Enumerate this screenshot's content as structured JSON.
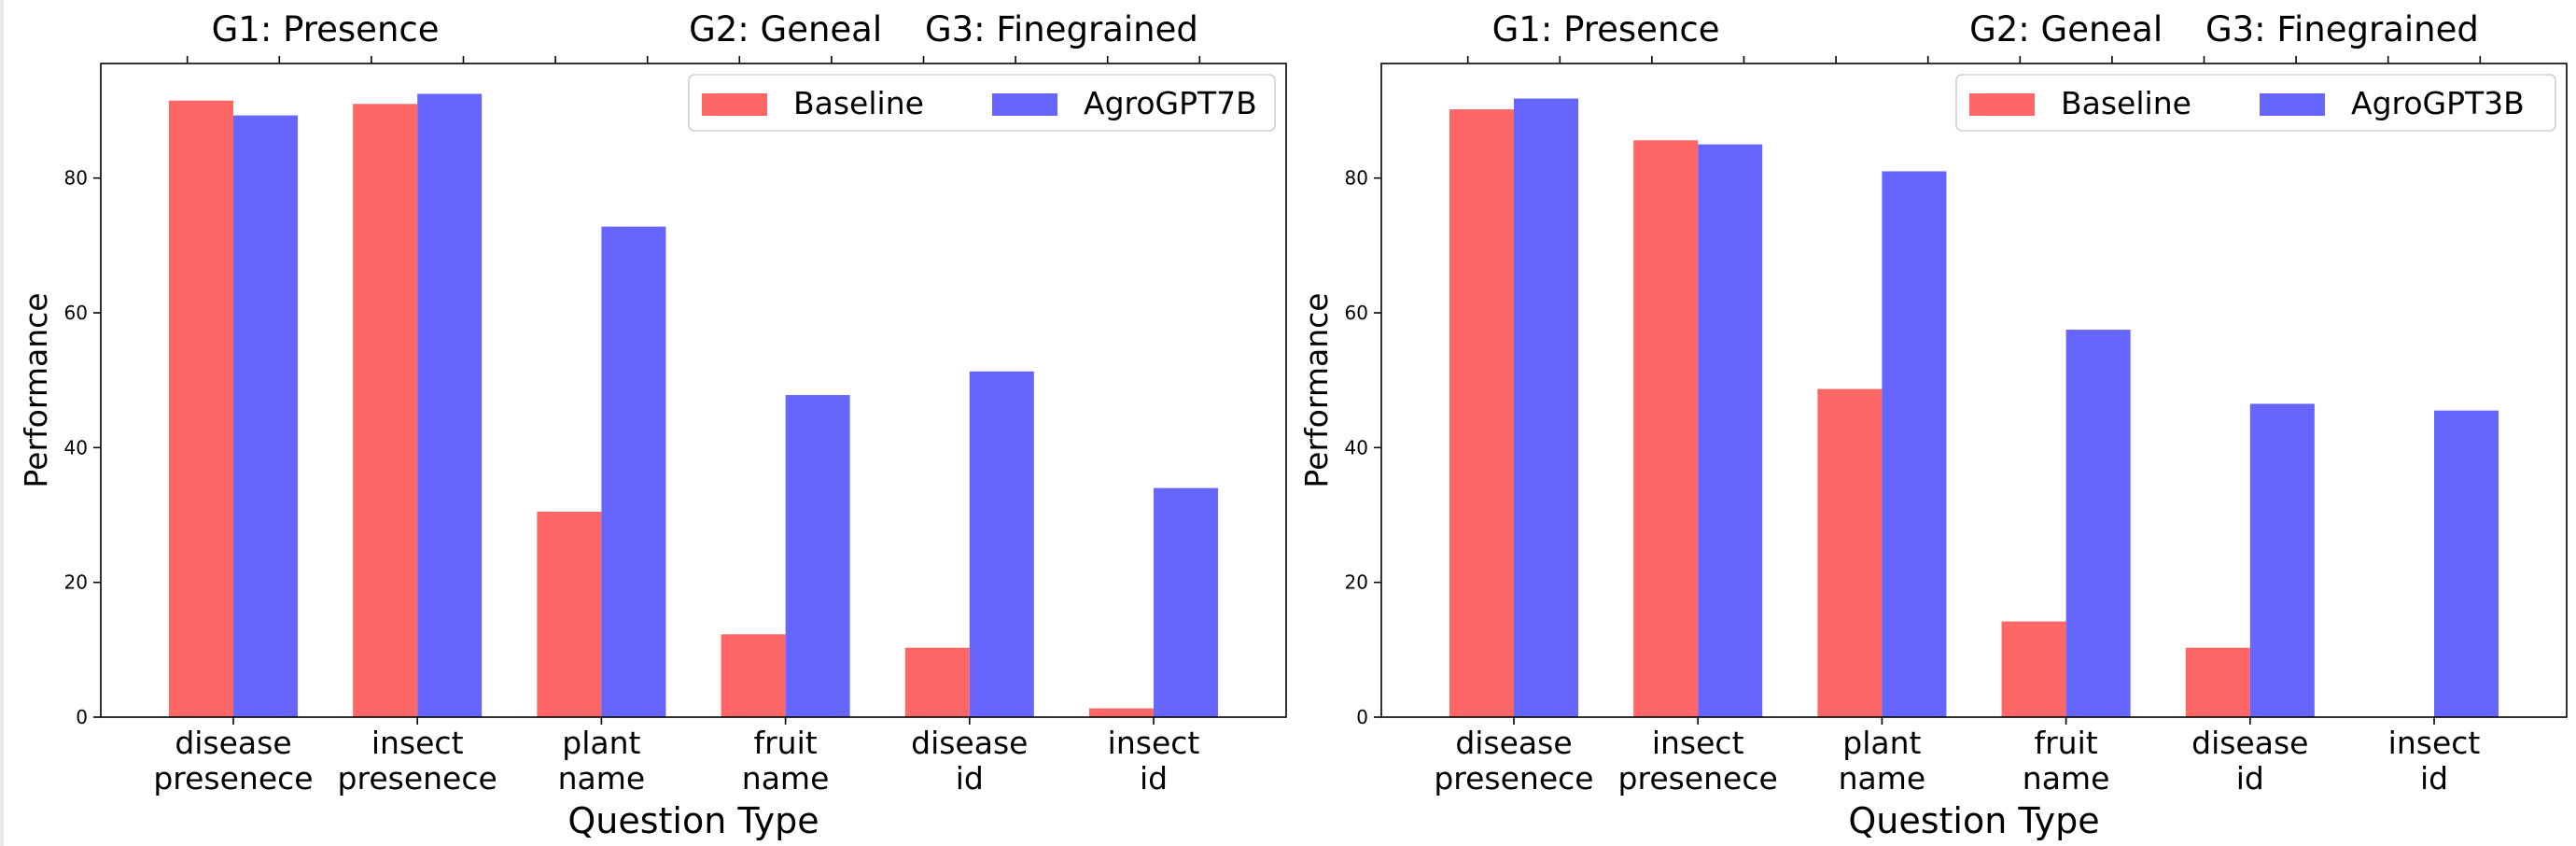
{
  "chart_data": [
    {
      "type": "bar",
      "ylabel": "Performance",
      "xlabel": "Question Type",
      "ylim": [
        0,
        97
      ],
      "yticks": [
        0,
        20,
        40,
        60,
        80
      ],
      "categories": [
        [
          "disease",
          "presenece"
        ],
        [
          "insect",
          "presenece"
        ],
        [
          "plant",
          "name"
        ],
        [
          "fruit",
          "name"
        ],
        [
          "disease",
          "id"
        ],
        [
          "insect",
          "id"
        ]
      ],
      "top_groups": [
        "G1: Presence",
        "G2: Geneal",
        "G3: Finegrained"
      ],
      "legend_position": "top-right",
      "grid": false,
      "series": [
        {
          "name": "Baseline",
          "color": "#ff6666",
          "values": [
            91.5,
            91.0,
            30.5,
            12.3,
            10.3,
            1.3
          ]
        },
        {
          "name": "AgroGPT7B",
          "color": "#6666ff",
          "values": [
            89.3,
            92.5,
            72.8,
            47.8,
            51.3,
            34.0
          ]
        }
      ]
    },
    {
      "type": "bar",
      "ylabel": "Performance",
      "xlabel": "Question Type",
      "ylim": [
        0,
        97
      ],
      "yticks": [
        0,
        20,
        40,
        60,
        80
      ],
      "categories": [
        [
          "disease",
          "presenece"
        ],
        [
          "insect",
          "presenece"
        ],
        [
          "plant",
          "name"
        ],
        [
          "fruit",
          "name"
        ],
        [
          "disease",
          "id"
        ],
        [
          "insect",
          "id"
        ]
      ],
      "top_groups": [
        "G1: Presence",
        "G2: Geneal",
        "G3: Finegrained"
      ],
      "legend_position": "top-right",
      "grid": false,
      "series": [
        {
          "name": "Baseline",
          "color": "#ff6666",
          "values": [
            90.2,
            85.6,
            48.7,
            14.2,
            10.3,
            0.0
          ]
        },
        {
          "name": "AgroGPT3B",
          "color": "#6666ff",
          "values": [
            91.8,
            85.0,
            81.0,
            57.5,
            46.5,
            45.5
          ]
        }
      ]
    }
  ]
}
